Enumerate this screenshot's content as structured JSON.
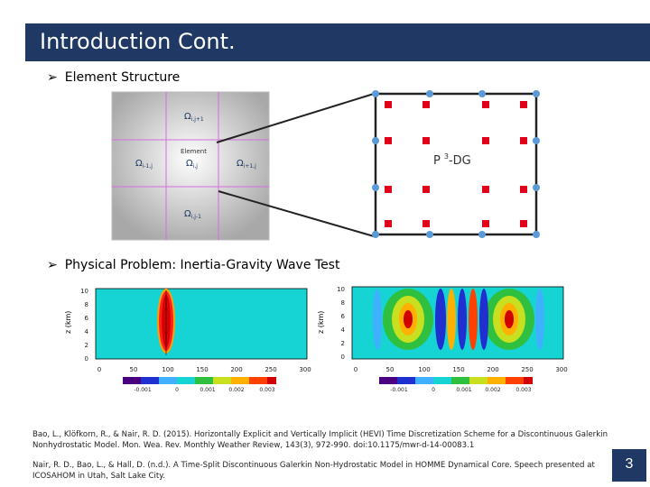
{
  "slide": {
    "title": "Introduction Cont.",
    "bullets": [
      "Element Structure",
      "Physical Problem: Inertia-Gravity Wave Test"
    ],
    "page_number": "3"
  },
  "element_diagram": {
    "center_label_top": "Element",
    "cells": {
      "top": "Ω",
      "top_sub": "i,j+1",
      "left": "Ω",
      "left_sub": "i-1,j",
      "center": "Ω",
      "center_sub": "i,j",
      "right": "Ω",
      "right_sub": "i+1,j",
      "bottom": "Ω",
      "bottom_sub": "i,j-1"
    },
    "zoom_label_prefix": "P",
    "zoom_label_sup": "3",
    "zoom_label_suffix": "-DG",
    "node_color": "#5b9bd5",
    "quad_color": "#e0001a"
  },
  "wave_panels": {
    "ylabel": "z (km)",
    "yticks": [
      "10",
      "8",
      "6",
      "4",
      "2",
      "0"
    ],
    "xticks": [
      "0",
      "50",
      "100",
      "150",
      "200",
      "250",
      "300"
    ],
    "colorbar_left": [
      "-0.001",
      "0",
      "0.001",
      "0.002",
      "0.003"
    ],
    "colorbar_right": [
      "-0.001",
      "0",
      "0.001",
      "0.002",
      "0.003"
    ]
  },
  "references": [
    "Bao, L., Klöfkorn, R., & Nair, R. D. (2015). Horizontally Explicit and Vertically Implicit (HEVI) Time Discretization Scheme for a Discontinuous Galerkin Nonhydrostatic Model. Mon. Wea. Rev. Monthly Weather Review, 143(3), 972-990. doi:10.1175/mwr-d-14-00083.1",
    "Nair, R. D., Bao, L., & Hall, D. (n.d.). A Time-Split Discontinuous Galerkin Non-Hydrostatic Model in HOMME Dynamical Core. Speech presented at ICOSAHOM in Utah, Salt Lake City."
  ]
}
